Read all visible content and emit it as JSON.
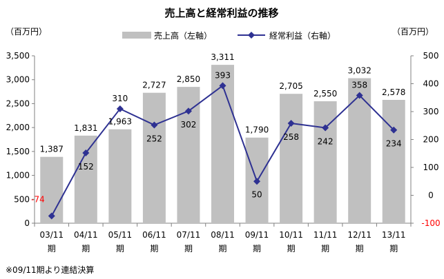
{
  "chart_data": {
    "type": "bar+line",
    "title": "売上高と経常利益の推移",
    "left_unit": "（百万円）",
    "right_unit": "（百万円）",
    "categories": [
      [
        "03/11",
        "期"
      ],
      [
        "04/11",
        "期"
      ],
      [
        "05/11",
        "期"
      ],
      [
        "06/11",
        "期"
      ],
      [
        "07/11",
        "期"
      ],
      [
        "08/11",
        "期"
      ],
      [
        "09/11",
        "期"
      ],
      [
        "10/11",
        "期"
      ],
      [
        "11/11",
        "期"
      ],
      [
        "12/11",
        "期"
      ],
      [
        "13/11",
        "期"
      ]
    ],
    "series": [
      {
        "name": "売上高（左軸）",
        "type": "bar",
        "axis": "left",
        "color": "#c0c0c0",
        "values": [
          1387,
          1831,
          1963,
          2727,
          2850,
          3311,
          1790,
          2705,
          2550,
          3032,
          2578
        ],
        "labels": [
          "1,387",
          "1,831",
          "1,963",
          "2,727",
          "2,850",
          "3,311",
          "1,790",
          "2,705",
          "2,550",
          "3,032",
          "2,578"
        ]
      },
      {
        "name": "経常利益（右軸）",
        "type": "line",
        "axis": "right",
        "color": "#2e3192",
        "values": [
          -74,
          152,
          310,
          252,
          302,
          393,
          50,
          258,
          242,
          358,
          234
        ],
        "labels": [
          "-74",
          "152",
          "310",
          "252",
          "302",
          "393",
          "50",
          "258",
          "242",
          "358",
          "234"
        ]
      }
    ],
    "left_axis": {
      "ylim": [
        0,
        3500
      ],
      "ticks": [
        "0",
        "500",
        "1,000",
        "1,500",
        "2,000",
        "2,500",
        "3,000",
        "3,500"
      ]
    },
    "right_axis": {
      "ylim": [
        -100,
        500
      ],
      "ticks": [
        "-100",
        "0",
        "100",
        "200",
        "300",
        "400",
        "500"
      ]
    },
    "negative_color": "#ff0000",
    "grid": false,
    "legend_position": "top"
  },
  "footnote": "※09/11期より連結決算"
}
